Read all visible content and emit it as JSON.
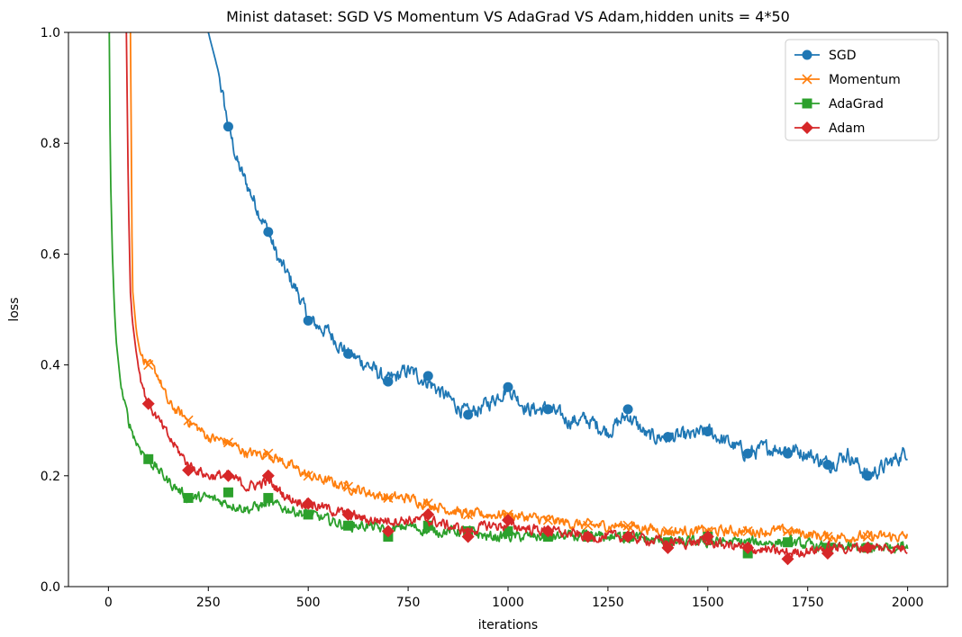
{
  "chart_data": {
    "type": "line",
    "title": "Minist dataset: SGD VS Momentum VS AdaGrad VS Adam,hidden units = 4*50",
    "xlabel": "iterations",
    "ylabel": "loss",
    "xlim": [
      -100,
      2100
    ],
    "ylim": [
      0.0,
      1.0
    ],
    "xticks": [
      0,
      250,
      500,
      750,
      1000,
      1250,
      1500,
      1750,
      2000
    ],
    "xtick_labels": [
      "0",
      "250",
      "500",
      "750",
      "1000",
      "1250",
      "1500",
      "1750",
      "2000"
    ],
    "yticks": [
      0.0,
      0.2,
      0.4,
      0.6,
      0.8,
      1.0
    ],
    "ytick_labels": [
      "0.0",
      "0.2",
      "0.4",
      "0.6",
      "0.8",
      "1.0"
    ],
    "legend_position": "top-right",
    "marker_every": 100,
    "series": [
      {
        "name": "SGD",
        "color": "#1f77b4",
        "marker": "circle",
        "x": [
          250,
          275,
          300,
          325,
          350,
          375,
          400,
          425,
          450,
          475,
          500,
          550,
          600,
          650,
          700,
          750,
          800,
          850,
          900,
          950,
          1000,
          1050,
          1100,
          1150,
          1200,
          1250,
          1300,
          1350,
          1400,
          1450,
          1500,
          1550,
          1600,
          1650,
          1700,
          1750,
          1800,
          1850,
          1900,
          1950,
          2000
        ],
        "values": [
          1.0,
          0.93,
          0.83,
          0.76,
          0.72,
          0.68,
          0.64,
          0.59,
          0.56,
          0.53,
          0.48,
          0.46,
          0.42,
          0.4,
          0.37,
          0.39,
          0.37,
          0.34,
          0.31,
          0.33,
          0.36,
          0.32,
          0.32,
          0.3,
          0.3,
          0.28,
          0.31,
          0.27,
          0.27,
          0.27,
          0.28,
          0.26,
          0.24,
          0.25,
          0.25,
          0.24,
          0.22,
          0.24,
          0.2,
          0.22,
          0.245
        ],
        "marker_x": [
          300,
          400,
          500,
          600,
          700,
          800,
          900,
          1000,
          1100,
          1300,
          1400,
          1500,
          1600,
          1700,
          1800,
          1900
        ],
        "marker_y": [
          0.83,
          0.64,
          0.48,
          0.42,
          0.37,
          0.38,
          0.31,
          0.36,
          0.32,
          0.32,
          0.27,
          0.28,
          0.24,
          0.24,
          0.22,
          0.2
        ]
      },
      {
        "name": "Momentum",
        "color": "#ff7f0e",
        "marker": "x",
        "x": [
          55,
          60,
          70,
          80,
          100,
          125,
          150,
          200,
          250,
          300,
          350,
          400,
          450,
          500,
          550,
          600,
          650,
          700,
          750,
          800,
          850,
          900,
          950,
          1000,
          1100,
          1200,
          1300,
          1400,
          1500,
          1600,
          1700,
          1800,
          1900,
          2000
        ],
        "values": [
          1.0,
          0.54,
          0.46,
          0.42,
          0.4,
          0.38,
          0.33,
          0.3,
          0.27,
          0.26,
          0.24,
          0.24,
          0.22,
          0.2,
          0.19,
          0.18,
          0.17,
          0.16,
          0.16,
          0.15,
          0.14,
          0.13,
          0.13,
          0.13,
          0.12,
          0.11,
          0.11,
          0.1,
          0.1,
          0.1,
          0.1,
          0.09,
          0.09,
          0.09
        ],
        "marker_x": [
          100,
          200,
          300,
          400,
          500,
          600,
          700,
          800,
          900,
          1000,
          1100,
          1200,
          1300,
          1400,
          1500,
          1600,
          1700,
          1800,
          1900
        ],
        "marker_y": [
          0.4,
          0.3,
          0.26,
          0.24,
          0.2,
          0.18,
          0.16,
          0.15,
          0.13,
          0.13,
          0.12,
          0.11,
          0.11,
          0.1,
          0.1,
          0.1,
          0.1,
          0.09,
          0.09
        ]
      },
      {
        "name": "AdaGrad",
        "color": "#2ca02c",
        "marker": "square",
        "x": [
          2,
          5,
          10,
          15,
          20,
          30,
          40,
          50,
          70,
          90,
          100,
          125,
          150,
          200,
          250,
          300,
          350,
          400,
          450,
          500,
          550,
          600,
          650,
          700,
          750,
          800,
          850,
          900,
          950,
          1000,
          1100,
          1200,
          1300,
          1400,
          1500,
          1600,
          1700,
          1800,
          1900,
          2000
        ],
        "values": [
          1.0,
          0.75,
          0.6,
          0.5,
          0.44,
          0.37,
          0.33,
          0.3,
          0.26,
          0.24,
          0.23,
          0.21,
          0.19,
          0.16,
          0.16,
          0.15,
          0.14,
          0.15,
          0.14,
          0.13,
          0.12,
          0.11,
          0.11,
          0.1,
          0.11,
          0.1,
          0.1,
          0.1,
          0.09,
          0.09,
          0.09,
          0.09,
          0.09,
          0.08,
          0.08,
          0.08,
          0.08,
          0.07,
          0.07,
          0.075
        ],
        "marker_x": [
          100,
          200,
          300,
          400,
          500,
          600,
          700,
          800,
          900,
          1000,
          1100,
          1200,
          1300,
          1400,
          1500,
          1600,
          1700,
          1800,
          1900
        ],
        "marker_y": [
          0.23,
          0.16,
          0.17,
          0.16,
          0.13,
          0.11,
          0.09,
          0.11,
          0.1,
          0.1,
          0.09,
          0.09,
          0.09,
          0.08,
          0.09,
          0.06,
          0.08,
          0.07,
          0.07
        ]
      },
      {
        "name": "Adam",
        "color": "#d62728",
        "marker": "diamond",
        "x": [
          45,
          50,
          55,
          60,
          70,
          80,
          90,
          100,
          125,
          150,
          200,
          250,
          300,
          350,
          400,
          450,
          500,
          550,
          600,
          650,
          700,
          750,
          800,
          850,
          900,
          950,
          1000,
          1100,
          1200,
          1300,
          1400,
          1500,
          1600,
          1700,
          1800,
          1900,
          2000
        ],
        "values": [
          1.0,
          0.7,
          0.53,
          0.48,
          0.42,
          0.38,
          0.35,
          0.33,
          0.3,
          0.27,
          0.22,
          0.2,
          0.2,
          0.18,
          0.19,
          0.16,
          0.15,
          0.14,
          0.13,
          0.12,
          0.12,
          0.12,
          0.12,
          0.11,
          0.1,
          0.11,
          0.11,
          0.1,
          0.09,
          0.09,
          0.08,
          0.08,
          0.07,
          0.06,
          0.07,
          0.07,
          0.07
        ],
        "marker_x": [
          100,
          200,
          300,
          400,
          500,
          600,
          700,
          800,
          900,
          1000,
          1100,
          1200,
          1300,
          1400,
          1500,
          1600,
          1700,
          1800,
          1900
        ],
        "marker_y": [
          0.33,
          0.21,
          0.2,
          0.2,
          0.15,
          0.13,
          0.1,
          0.13,
          0.09,
          0.12,
          0.1,
          0.09,
          0.09,
          0.07,
          0.09,
          0.07,
          0.05,
          0.06,
          0.07
        ]
      }
    ]
  }
}
